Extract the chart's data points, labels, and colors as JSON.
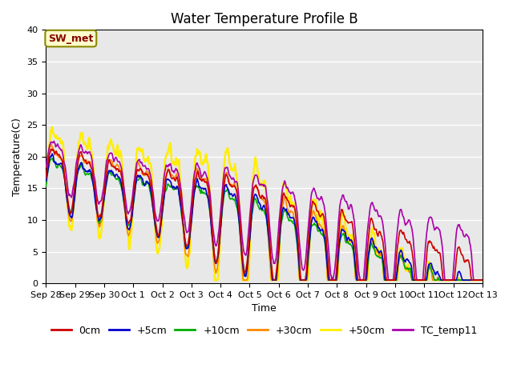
{
  "title": "Water Temperature Profile B",
  "xlabel": "Time",
  "ylabel": "Temperature(C)",
  "ylim": [
    0,
    40
  ],
  "yticks": [
    0,
    5,
    10,
    15,
    20,
    25,
    30,
    35,
    40
  ],
  "xtick_labels": [
    "Sep 28",
    "Sep 29",
    "Sep 30",
    "Oct 1",
    "Oct 2",
    "Oct 3",
    "Oct 4",
    "Oct 5",
    "Oct 6",
    "Oct 7",
    "Oct 8",
    "Oct 9",
    "Oct 10",
    "Oct 11",
    "Oct 12",
    "Oct 13"
  ],
  "series": {
    "0cm": {
      "color": "#cc0000",
      "lw": 1.2
    },
    "+5cm": {
      "color": "#0000cc",
      "lw": 1.2
    },
    "+10cm": {
      "color": "#00aa00",
      "lw": 1.2
    },
    "+30cm": {
      "color": "#ff8800",
      "lw": 1.2
    },
    "+50cm": {
      "color": "#ffee00",
      "lw": 1.8
    },
    "TC_temp11": {
      "color": "#aa00aa",
      "lw": 1.2
    }
  },
  "annotation_text": "SW_met",
  "annotation_color": "#880000",
  "annotation_bg": "#ffffcc",
  "annotation_border": "#888800",
  "bg_color": "#e8e8e8",
  "grid_color": "#ffffff",
  "title_fontsize": 12,
  "axis_fontsize": 9,
  "tick_fontsize": 8,
  "legend_fontsize": 9
}
